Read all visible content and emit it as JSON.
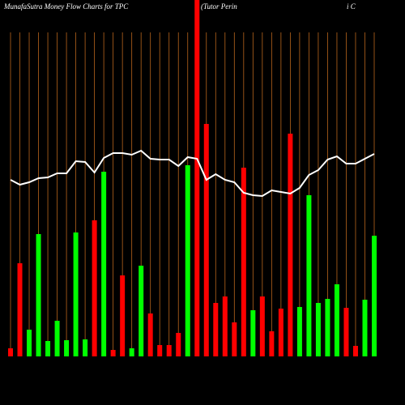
{
  "chart_data": {
    "type": "bar",
    "title": "MunafaSutra  Money Flow  Charts for TPC",
    "subtitle": "(Tutor Perin",
    "subtitle_tail": "i   C",
    "categories": [
      null,
      null,
      null,
      null,
      null,
      null,
      null,
      null,
      null,
      null,
      null,
      null,
      null,
      null,
      null,
      null,
      null,
      null,
      null,
      null,
      null,
      null,
      null,
      null,
      null,
      null,
      null,
      null,
      null,
      null,
      null,
      null,
      null,
      null,
      null,
      null,
      null,
      null,
      null,
      null
    ],
    "values": [
      10,
      115,
      33,
      151,
      19,
      44,
      20,
      153,
      21,
      168,
      228,
      8,
      100,
      10,
      112,
      53,
      14,
      14,
      29,
      236,
      440,
      287,
      66,
      74,
      42,
      233,
      57,
      74,
      31,
      59,
      275,
      61,
      199,
      66,
      71,
      89,
      60,
      13,
      70,
      149
    ],
    "colors": [
      "#ff0000",
      "#ff0000",
      "#00ff00",
      "#00ff00",
      "#00ff00",
      "#00ff00",
      "#00ff00",
      "#00ff00",
      "#00ff00",
      "#ff0000",
      "#00ff00",
      "#ff0000",
      "#ff0000",
      "#00ff00",
      "#00ff00",
      "#ff0000",
      "#ff0000",
      "#ff0000",
      "#ff0000",
      "#00ff00",
      "#ff0000",
      "#ff0000",
      "#ff0000",
      "#ff0000",
      "#ff0000",
      "#ff0000",
      "#00ff00",
      "#ff0000",
      "#ff0000",
      "#ff0000",
      "#ff0000",
      "#00ff00",
      "#00ff00",
      "#00ff00",
      "#00ff00",
      "#00ff00",
      "#ff0000",
      "#ff0000",
      "#00ff00",
      "#00ff00"
    ],
    "line": {
      "color": "#ffffff",
      "values": [
        218,
        212,
        215,
        220,
        221,
        226,
        226,
        241,
        240,
        227,
        245,
        251,
        251,
        249,
        254,
        244,
        243,
        243,
        235,
        246,
        244,
        218,
        225,
        218,
        215,
        202,
        199,
        198,
        205,
        203,
        201,
        208,
        224,
        230,
        243,
        247,
        238,
        238,
        244,
        250
      ]
    },
    "ylim": [
      0,
      440
    ],
    "grid_color": "#b8651c"
  }
}
